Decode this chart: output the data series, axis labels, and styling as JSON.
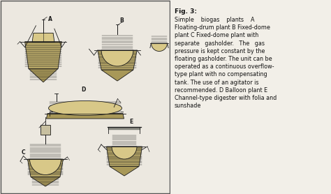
{
  "fig_label": "Fig. 3:",
  "description_lines": [
    "Simple    biogas    plants    A",
    "Floating-drum plant B Fixed-dome",
    "plant C Fixed-dome plant with",
    "separate   gasholder.   The   gas",
    "pressure is kept constant by the",
    "floating gasholder. The unit can be",
    "operated as a continuous overflow-",
    "type plant with no compensating",
    "tank. The use of an agitator is",
    "recommended. D Balloon plant E",
    "Channel-type digester with folia and",
    "sunshade"
  ],
  "bg_color": "#e8e4dc",
  "panel_bg": "#e8e4dc",
  "text_bg": "#f0ede6",
  "line_color": "#1a1a1a",
  "fill_dome": "#c8b87a",
  "fill_body": "#b8a868",
  "fill_btm": "#a89858",
  "fill_light": "#d8c888"
}
